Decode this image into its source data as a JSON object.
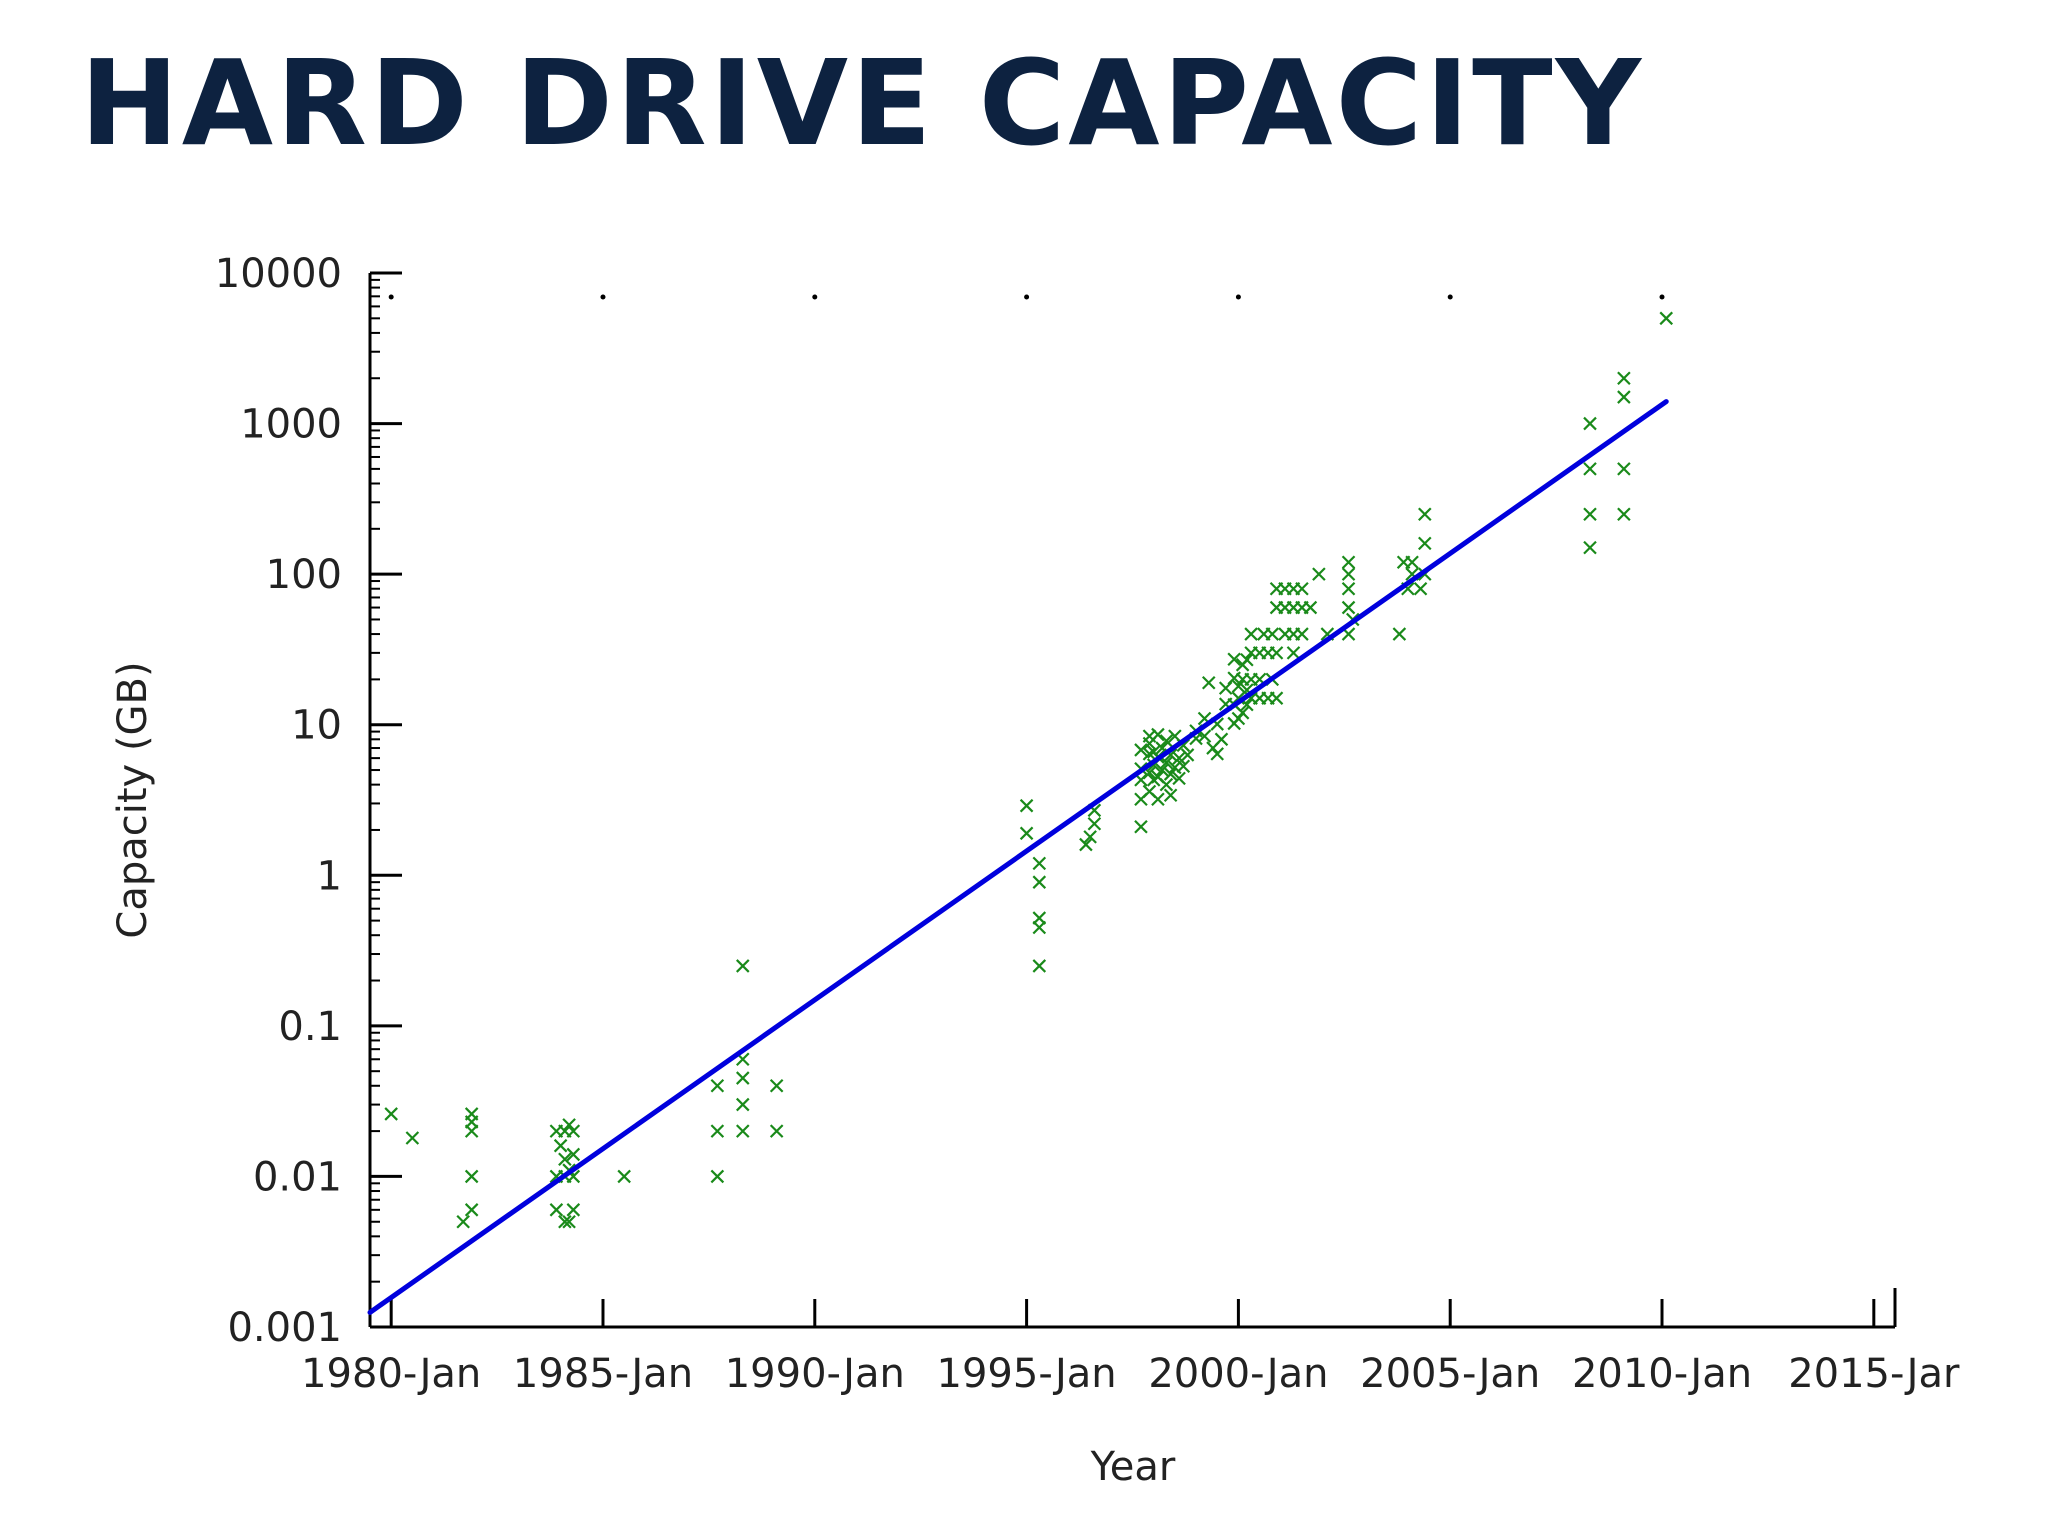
{
  "title": "Hard Drive Capacity",
  "chart_data": {
    "type": "scatter",
    "title": "Hard Drive Capacity",
    "xlabel": "Year",
    "ylabel": "Capacity (GB)",
    "y_scale": "log",
    "xlim": [
      1979.5,
      2015.5
    ],
    "ylim": [
      0.001,
      10000
    ],
    "x_ticks": [
      {
        "value": 1980,
        "label": "1980-Jan"
      },
      {
        "value": 1985,
        "label": "1985-Jan"
      },
      {
        "value": 1990,
        "label": "1990-Jan"
      },
      {
        "value": 1995,
        "label": "1995-Jan"
      },
      {
        "value": 2000,
        "label": "2000-Jan"
      },
      {
        "value": 2005,
        "label": "2005-Jan"
      },
      {
        "value": 2010,
        "label": "2010-Jan"
      },
      {
        "value": 2015,
        "label": "2015-Jar"
      }
    ],
    "y_ticks": [
      {
        "value": 0.001,
        "label": "0.001"
      },
      {
        "value": 0.01,
        "label": "0.01"
      },
      {
        "value": 0.1,
        "label": "0.1"
      },
      {
        "value": 1,
        "label": "1"
      },
      {
        "value": 10,
        "label": "10"
      },
      {
        "value": 100,
        "label": "100"
      },
      {
        "value": 1000,
        "label": "1000"
      },
      {
        "value": 10000,
        "label": "10000"
      }
    ],
    "colors": {
      "points": "#1a8a1a",
      "trend": "#0000dd",
      "axis": "#000000"
    },
    "grid": false,
    "series": [
      {
        "type": "scatter",
        "marker": "x",
        "points": [
          [
            1980.0,
            0.026
          ],
          [
            1980.5,
            0.018
          ],
          [
            1981.7,
            0.005
          ],
          [
            1981.9,
            0.006
          ],
          [
            1981.9,
            0.01
          ],
          [
            1981.9,
            0.02
          ],
          [
            1981.9,
            0.026
          ],
          [
            1981.9,
            0.023
          ],
          [
            1983.9,
            0.006
          ],
          [
            1983.9,
            0.01
          ],
          [
            1983.9,
            0.02
          ],
          [
            1984.0,
            0.016
          ],
          [
            1984.1,
            0.005
          ],
          [
            1984.1,
            0.01
          ],
          [
            1984.1,
            0.013
          ],
          [
            1984.1,
            0.02
          ],
          [
            1984.2,
            0.005
          ],
          [
            1984.2,
            0.011
          ],
          [
            1984.2,
            0.022
          ],
          [
            1984.3,
            0.006
          ],
          [
            1984.3,
            0.01
          ],
          [
            1984.3,
            0.02
          ],
          [
            1984.3,
            0.014
          ],
          [
            1985.5,
            0.01
          ],
          [
            1987.7,
            0.01
          ],
          [
            1987.7,
            0.02
          ],
          [
            1987.7,
            0.04
          ],
          [
            1988.3,
            0.02
          ],
          [
            1988.3,
            0.03
          ],
          [
            1988.3,
            0.045
          ],
          [
            1988.3,
            0.06
          ],
          [
            1988.3,
            0.25
          ],
          [
            1989.1,
            0.02
          ],
          [
            1989.1,
            0.04
          ],
          [
            1995.0,
            1.9
          ],
          [
            1995.0,
            2.9
          ],
          [
            1995.3,
            0.25
          ],
          [
            1995.3,
            0.45
          ],
          [
            1995.3,
            0.52
          ],
          [
            1995.3,
            0.9
          ],
          [
            1995.3,
            1.2
          ],
          [
            1996.4,
            1.6
          ],
          [
            1996.5,
            1.8
          ],
          [
            1996.6,
            2.2
          ],
          [
            1996.6,
            2.7
          ],
          [
            1997.7,
            2.1
          ],
          [
            1997.7,
            3.2
          ],
          [
            1997.7,
            4.3
          ],
          [
            1997.7,
            5.1
          ],
          [
            1997.7,
            6.8
          ],
          [
            1997.9,
            3.6
          ],
          [
            1997.9,
            4.8
          ],
          [
            1997.9,
            6.4
          ],
          [
            1997.9,
            7.5
          ],
          [
            1997.9,
            8.4
          ],
          [
            1998.0,
            4.3
          ],
          [
            1998.0,
            5.4
          ],
          [
            1998.0,
            6.6
          ],
          [
            1998.1,
            3.2
          ],
          [
            1998.1,
            4.5
          ],
          [
            1998.1,
            6.1
          ],
          [
            1998.1,
            8.6
          ],
          [
            1998.2,
            5.0
          ],
          [
            1998.2,
            7.0
          ],
          [
            1998.3,
            4.0
          ],
          [
            1998.3,
            5.6
          ],
          [
            1998.3,
            7.8
          ],
          [
            1998.4,
            3.4
          ],
          [
            1998.4,
            4.7
          ],
          [
            1998.4,
            6.3
          ],
          [
            1998.5,
            5.2
          ],
          [
            1998.5,
            8.4
          ],
          [
            1998.6,
            4.4
          ],
          [
            1998.6,
            6.0
          ],
          [
            1998.7,
            5.3
          ],
          [
            1998.7,
            7.3
          ],
          [
            1998.8,
            6.3
          ],
          [
            1999.0,
            8.1
          ],
          [
            1999.0,
            9.1
          ],
          [
            1999.2,
            8.4
          ],
          [
            1999.2,
            11.0
          ],
          [
            1999.3,
            19.0
          ],
          [
            1999.4,
            7.0
          ],
          [
            1999.5,
            6.4
          ],
          [
            1999.5,
            10.1
          ],
          [
            1999.6,
            8.0
          ],
          [
            1999.7,
            13.7
          ],
          [
            1999.7,
            17.5
          ],
          [
            1999.9,
            10.2
          ],
          [
            1999.9,
            13.6
          ],
          [
            1999.9,
            20.4
          ],
          [
            1999.9,
            27.2
          ],
          [
            2000.0,
            11.0
          ],
          [
            2000.0,
            15.0
          ],
          [
            2000.0,
            18.0
          ],
          [
            2000.1,
            12.0
          ],
          [
            2000.1,
            20.0
          ],
          [
            2000.1,
            25.0
          ],
          [
            2000.2,
            13.6
          ],
          [
            2000.2,
            17.0
          ],
          [
            2000.2,
            27.0
          ],
          [
            2000.3,
            15.0
          ],
          [
            2000.3,
            20.0
          ],
          [
            2000.3,
            30.0
          ],
          [
            2000.3,
            40.0
          ],
          [
            2000.5,
            15.0
          ],
          [
            2000.5,
            20.0
          ],
          [
            2000.5,
            30.0
          ],
          [
            2000.6,
            40.0
          ],
          [
            2000.7,
            15.0
          ],
          [
            2000.7,
            30.0
          ],
          [
            2000.8,
            20.0
          ],
          [
            2000.8,
            40.0
          ],
          [
            2000.9,
            15.0
          ],
          [
            2000.9,
            30.0
          ],
          [
            2000.9,
            60.0
          ],
          [
            2000.9,
            80.0
          ],
          [
            2001.1,
            40.0
          ],
          [
            2001.1,
            60.0
          ],
          [
            2001.1,
            80.0
          ],
          [
            2001.3,
            30.0
          ],
          [
            2001.3,
            40.0
          ],
          [
            2001.3,
            60.0
          ],
          [
            2001.3,
            80.0
          ],
          [
            2001.5,
            40.0
          ],
          [
            2001.5,
            60.0
          ],
          [
            2001.5,
            80.0
          ],
          [
            2001.7,
            60.0
          ],
          [
            2001.9,
            100.0
          ],
          [
            2002.1,
            40.0
          ],
          [
            2002.6,
            40.0
          ],
          [
            2002.6,
            60.0
          ],
          [
            2002.6,
            80.0
          ],
          [
            2002.6,
            100.0
          ],
          [
            2002.6,
            120.0
          ],
          [
            2002.7,
            50.0
          ],
          [
            2003.8,
            40.0
          ],
          [
            2003.9,
            120.0
          ],
          [
            2004.0,
            80.0
          ],
          [
            2004.1,
            120.0
          ],
          [
            2004.1,
            100.0
          ],
          [
            2004.3,
            80.0
          ],
          [
            2004.4,
            160.0
          ],
          [
            2004.4,
            250.0
          ],
          [
            2004.4,
            100.0
          ],
          [
            2008.3,
            150.0
          ],
          [
            2008.3,
            250.0
          ],
          [
            2008.3,
            500.0
          ],
          [
            2008.3,
            1000.0
          ],
          [
            2009.1,
            250.0
          ],
          [
            2009.1,
            500.0
          ],
          [
            2009.1,
            1500.0
          ],
          [
            2009.1,
            2000.0
          ],
          [
            2010.1,
            5000.0
          ]
        ]
      },
      {
        "type": "line",
        "points": [
          [
            1979.5,
            0.00125
          ],
          [
            2010.1,
            1400.0
          ]
        ]
      }
    ]
  }
}
